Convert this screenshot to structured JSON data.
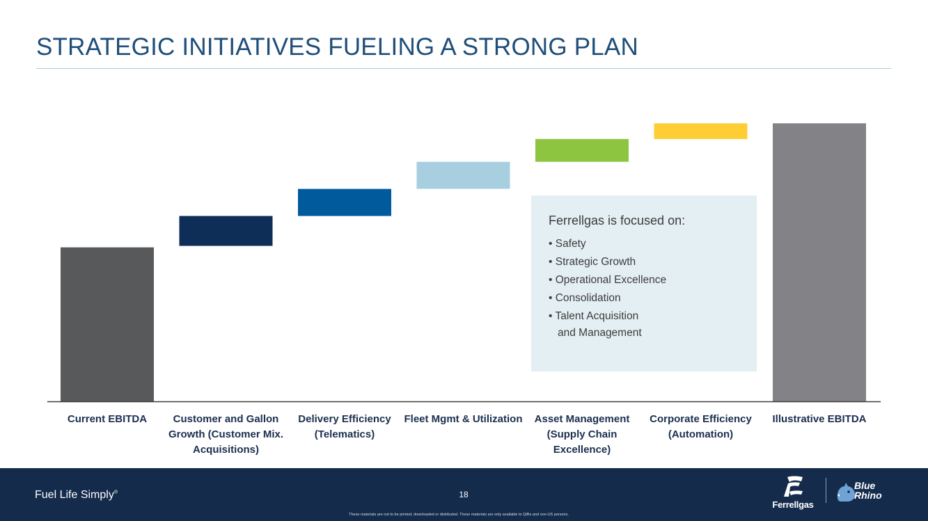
{
  "slide": {
    "title": "STRATEGIC INITIATIVES FUELING A STRONG PLAN"
  },
  "chart_data": {
    "type": "bar",
    "subtype": "waterfall",
    "title": "",
    "xlabel": "",
    "ylabel": "",
    "ylim": [
      0,
      100
    ],
    "y_axis_labels_shown": false,
    "grid": false,
    "categories": [
      "Current EBITDA",
      "Customer and Gallon Growth (Customer Mix. Acquisitions)",
      "Delivery Efficiency (Telematics)",
      "Fleet Mgmt & Utilization",
      "Asset Management (Supply Chain Excellence)",
      "Corporate Efficiency (Automation)",
      "Illustrative EBITDA"
    ],
    "bars": [
      {
        "kind": "total",
        "start": 0,
        "end": 54.0,
        "color": "#58595b"
      },
      {
        "kind": "increment",
        "start": 54.5,
        "end": 65.0,
        "color": "#0e2d57"
      },
      {
        "kind": "increment",
        "start": 65.0,
        "end": 74.5,
        "color": "#005a9c"
      },
      {
        "kind": "increment",
        "start": 74.5,
        "end": 84.0,
        "color": "#a8cfe0"
      },
      {
        "kind": "increment",
        "start": 84.0,
        "end": 92.0,
        "color": "#8dc540"
      },
      {
        "kind": "increment",
        "start": 92.0,
        "end": 97.5,
        "color": "#ffcd34"
      },
      {
        "kind": "total",
        "start": 0,
        "end": 97.5,
        "color": "#838387"
      }
    ],
    "axis_line_color": "#3f3f3f"
  },
  "focus_box": {
    "heading": "Ferrellgas is focused on:",
    "items": [
      "• Safety",
      "• Strategic Growth",
      "• Operational Excellence",
      "• Consolidation",
      "• Talent Acquisition\nand Management"
    ]
  },
  "footer": {
    "tagline": "Fuel Life Simply",
    "tagline_mark": "®",
    "page_number": "18",
    "disclaimer": "These materials are not to be printed, downloaded or distributed. These materials are only available to QIBs and non-US persons.",
    "logo_ferrellgas": "Ferrellgas",
    "logo_bluerhino_line1": "Blue",
    "logo_bluerhino_line2": "Rhino"
  },
  "colors": {
    "title": "#1f4e79",
    "footer_background": "#142b4c",
    "focus_box_background": "#e4eff3",
    "label_text": "#1b2f4f"
  }
}
